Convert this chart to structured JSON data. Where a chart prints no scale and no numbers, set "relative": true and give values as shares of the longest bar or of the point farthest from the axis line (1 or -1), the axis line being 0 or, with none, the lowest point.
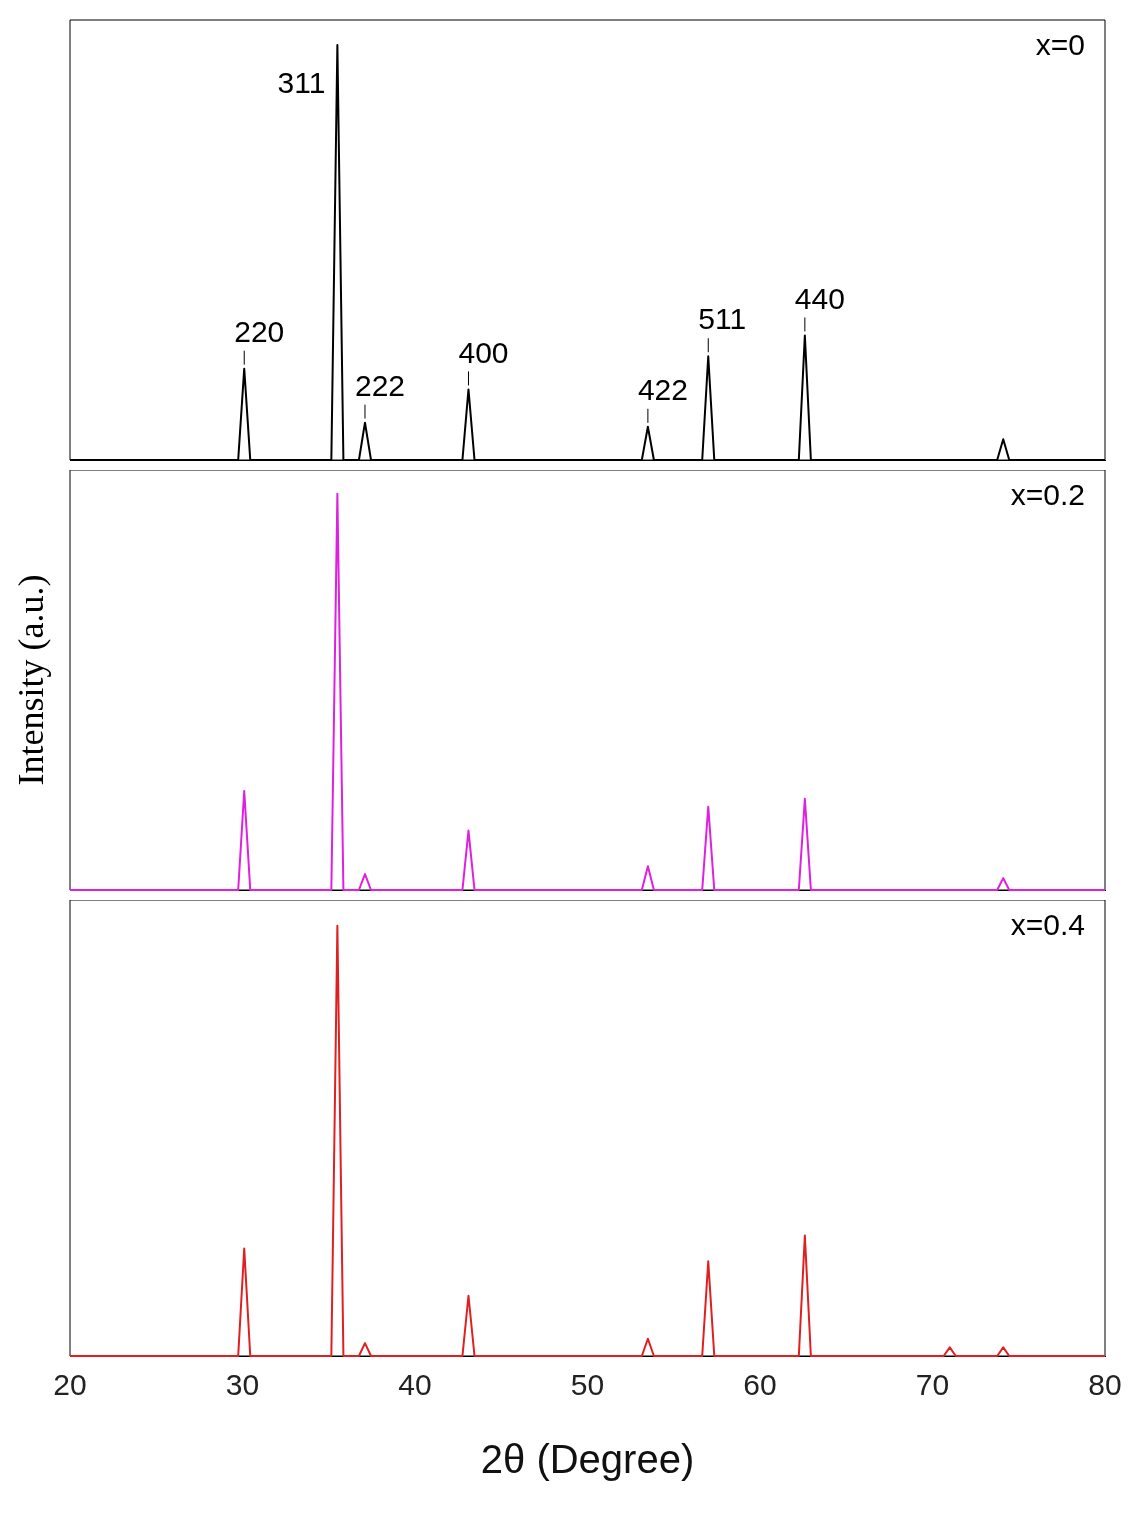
{
  "chart_data": [
    {
      "type": "line",
      "relative": true,
      "marker": "none",
      "xlim": [
        20,
        80
      ],
      "xticks": [
        20,
        30,
        40,
        50,
        60,
        70,
        80
      ],
      "tick_labels": false,
      "series": [
        {
          "name": "x=0",
          "color": "#000000",
          "x": [
            20,
            29.75,
            30.1,
            30.45,
            35.15,
            35.5,
            35.85,
            36.75,
            37.1,
            37.45,
            42.75,
            43.1,
            43.45,
            53.15,
            53.5,
            53.85,
            56.65,
            57.0,
            57.35,
            62.25,
            62.6,
            62.95,
            73.75,
            74.1,
            74.45,
            80
          ],
          "values": [
            0,
            0,
            0.22,
            0,
            0,
            1,
            0,
            0,
            0.09,
            0,
            0,
            0.17,
            0,
            0,
            0.08,
            0,
            0,
            0.25,
            0,
            0,
            0.3,
            0,
            0,
            0.05,
            0,
            0
          ]
        }
      ],
      "annotations": [
        {
          "text": "220",
          "x": 30.1,
          "y": 0.22
        },
        {
          "text": "311",
          "x": 35.5,
          "y": 1
        },
        {
          "text": "222",
          "x": 37.1,
          "y": 0.09
        },
        {
          "text": "400",
          "x": 43.1,
          "y": 0.17
        },
        {
          "text": "422",
          "x": 53.5,
          "y": 0.08
        },
        {
          "text": "511",
          "x": 57.0,
          "y": 0.25
        },
        {
          "text": "440",
          "x": 62.6,
          "y": 0.3
        }
      ]
    },
    {
      "type": "line",
      "relative": true,
      "marker": "none",
      "xlim": [
        20,
        80
      ],
      "xticks": [
        20,
        30,
        40,
        50,
        60,
        70,
        80
      ],
      "tick_labels": false,
      "ylabel": "Intensity (a.u.)",
      "series": [
        {
          "name": "x=0.2",
          "color": "#e020e0",
          "x": [
            20,
            29.75,
            30.1,
            30.45,
            35.15,
            35.5,
            35.85,
            36.75,
            37.1,
            37.45,
            42.75,
            43.1,
            43.45,
            53.15,
            53.5,
            53.85,
            56.65,
            57.0,
            57.35,
            62.25,
            62.6,
            62.95,
            73.75,
            74.1,
            74.45,
            80
          ],
          "values": [
            0,
            0,
            0.25,
            0,
            0,
            1,
            0,
            0,
            0.04,
            0,
            0,
            0.15,
            0,
            0,
            0.06,
            0,
            0,
            0.21,
            0,
            0,
            0.23,
            0,
            0,
            0.03,
            0,
            0
          ]
        }
      ]
    },
    {
      "type": "line",
      "relative": true,
      "marker": "none",
      "xlim": [
        20,
        80
      ],
      "xticks": [
        20,
        30,
        40,
        50,
        60,
        70,
        80
      ],
      "tick_labels": "x",
      "xlabel": "2θ (Degree)",
      "series": [
        {
          "name": "x=0.4",
          "color": "#e02020",
          "x": [
            20,
            29.75,
            30.1,
            30.45,
            35.15,
            35.5,
            35.85,
            36.75,
            37.1,
            37.45,
            42.75,
            43.1,
            43.45,
            53.15,
            53.5,
            53.85,
            56.65,
            57.0,
            57.35,
            62.25,
            62.6,
            62.95,
            70.65,
            71.0,
            71.35,
            73.75,
            74.1,
            74.45,
            80
          ],
          "values": [
            0,
            0,
            0.25,
            0,
            0,
            1,
            0,
            0,
            0.03,
            0,
            0,
            0.14,
            0,
            0,
            0.04,
            0,
            0,
            0.22,
            0,
            0,
            0.28,
            0,
            0,
            0.02,
            0,
            0,
            0.02,
            0,
            0
          ]
        }
      ]
    }
  ]
}
